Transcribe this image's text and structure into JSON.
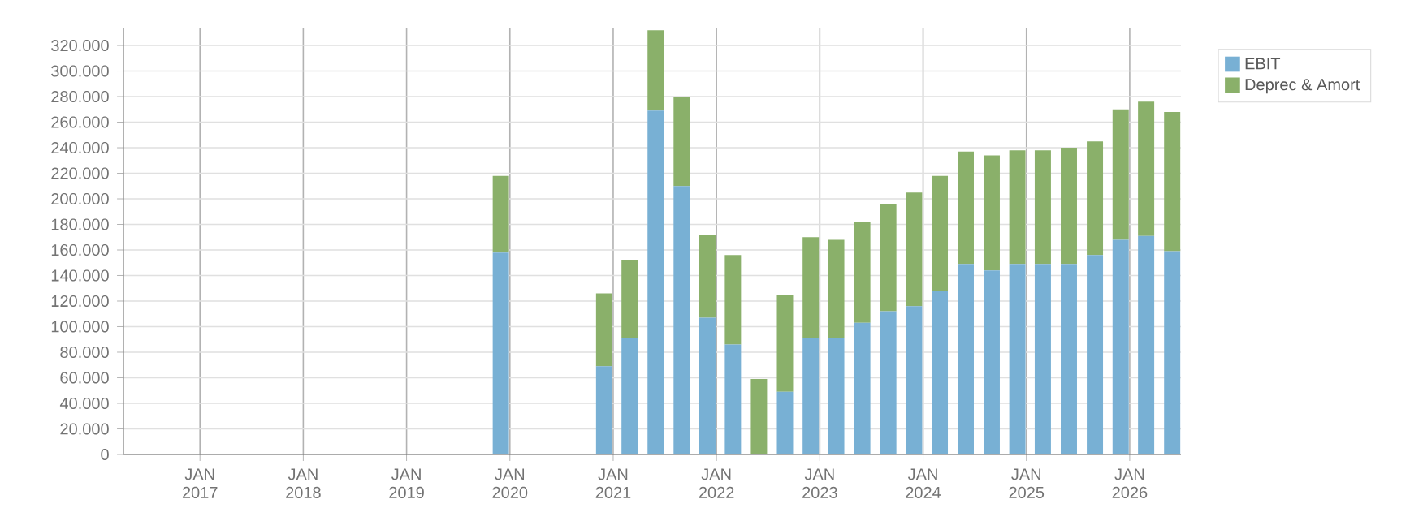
{
  "chart_data": {
    "type": "bar",
    "stacked": true,
    "x": [
      "2019-11-30",
      "2020-11-30",
      "2021-02-28",
      "2021-05-31",
      "2021-08-31",
      "2021-11-30",
      "2022-02-28",
      "2022-05-31",
      "2022-08-31",
      "2022-11-30",
      "2023-02-28",
      "2023-05-31",
      "2023-08-31",
      "2023-11-30",
      "2024-02-29",
      "2024-05-31",
      "2024-08-31",
      "2024-11-30",
      "2025-02-28",
      "2025-05-31",
      "2025-08-31",
      "2025-11-30",
      "2026-02-28",
      "2026-05-31"
    ],
    "series": [
      {
        "name": "EBIT",
        "color": "#78b0d4",
        "values": [
          158000,
          69000,
          91000,
          269000,
          210000,
          107000,
          86000,
          0,
          49000,
          91000,
          91000,
          103000,
          112000,
          116000,
          128000,
          149000,
          144000,
          149000,
          149000,
          149000,
          156000,
          168000,
          171000,
          159000
        ]
      },
      {
        "name": "Deprec & Amort",
        "color": "#8ab06a",
        "values": [
          60000,
          57000,
          61000,
          63000,
          70000,
          65000,
          70000,
          59000,
          76000,
          79000,
          77000,
          79000,
          84000,
          89000,
          90000,
          88000,
          90000,
          89000,
          89000,
          91000,
          89000,
          102000,
          105000,
          109000
        ]
      }
    ],
    "xlim": [
      "2016-04-05",
      "2026-07-01"
    ],
    "xticks": [
      {
        "value": "2017-01-01",
        "label": "JAN 2017"
      },
      {
        "value": "2018-01-01",
        "label": "JAN 2018"
      },
      {
        "value": "2019-01-01",
        "label": "JAN 2019"
      },
      {
        "value": "2020-01-01",
        "label": "JAN 2020"
      },
      {
        "value": "2021-01-01",
        "label": "JAN 2021"
      },
      {
        "value": "2022-01-01",
        "label": "JAN 2022"
      },
      {
        "value": "2023-01-01",
        "label": "JAN 2023"
      },
      {
        "value": "2024-01-01",
        "label": "JAN 2024"
      },
      {
        "value": "2025-01-01",
        "label": "JAN 2025"
      },
      {
        "value": "2026-01-01",
        "label": "JAN 2026"
      }
    ],
    "ylim": [
      0,
      334000
    ],
    "yticks": [
      0,
      {
        "value": 20000,
        "label": "20.000"
      },
      {
        "value": 40000,
        "label": "40.000"
      },
      {
        "value": 60000,
        "label": "60.000"
      },
      {
        "value": 80000,
        "label": "80.000"
      },
      {
        "value": 100000,
        "label": "100.000"
      },
      {
        "value": 120000,
        "label": "120.000"
      },
      {
        "value": 140000,
        "label": "140.000"
      },
      {
        "value": 160000,
        "label": "160.000"
      },
      {
        "value": 180000,
        "label": "180.000"
      },
      {
        "value": 200000,
        "label": "200.000"
      },
      {
        "value": 220000,
        "label": "220.000"
      },
      {
        "value": 240000,
        "label": "240.000"
      },
      {
        "value": 260000,
        "label": "260.000"
      },
      {
        "value": 280000,
        "label": "280.000"
      },
      {
        "value": 300000,
        "label": "300.000"
      },
      {
        "value": 320000,
        "label": "320.000"
      }
    ],
    "grid": true,
    "legend": "right"
  }
}
